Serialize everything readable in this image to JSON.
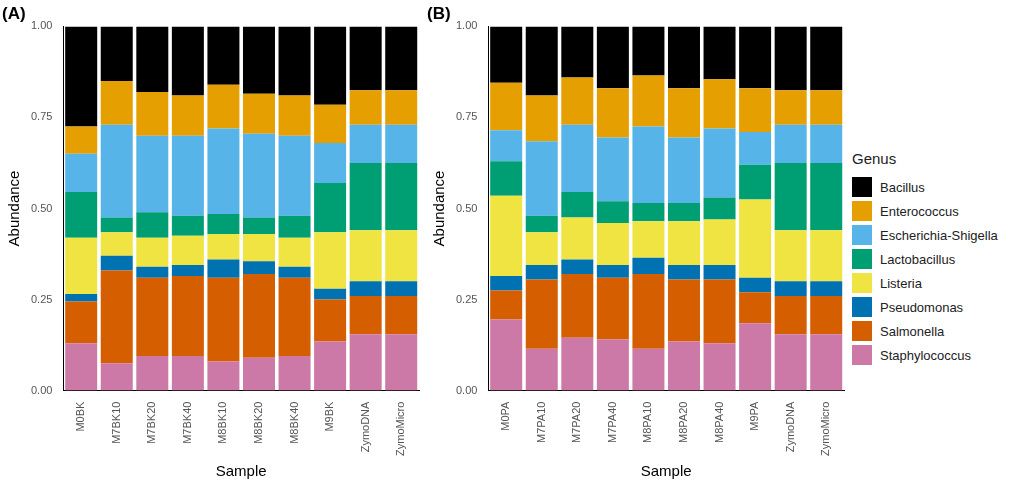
{
  "legend": "right",
  "legend_title": "Genus",
  "chart_data": [
    {
      "type": "bar",
      "title": "(A)",
      "x_label": "Sample",
      "y_label": "Abundance",
      "stacked": true,
      "grid": false,
      "categories": [
        "M0BK",
        "M7BK10",
        "M7BK20",
        "M7BK40",
        "M8BK10",
        "M8BK20",
        "M8BK40",
        "M9BK",
        "ZymoDNA",
        "ZymoMicro"
      ],
      "ylim": [
        0,
        1
      ],
      "yticks": [
        {
          "value": 0,
          "label": "0.00"
        },
        {
          "value": 0.25,
          "label": "0.25"
        },
        {
          "value": 0.5,
          "label": "0.50"
        },
        {
          "value": 0.75,
          "label": "0.75"
        },
        {
          "value": 1,
          "label": "1.00"
        }
      ],
      "series": [
        {
          "name": "Bacillus",
          "color": "#000000",
          "values": [
            0.275,
            0.15,
            0.18,
            0.19,
            0.16,
            0.185,
            0.19,
            0.215,
            0.175,
            0.175
          ]
        },
        {
          "name": "Enterococcus",
          "color": "#E69F00",
          "values": [
            0.075,
            0.12,
            0.12,
            0.11,
            0.12,
            0.11,
            0.11,
            0.105,
            0.095,
            0.095
          ]
        },
        {
          "name": "Escherichia-Shigella",
          "color": "#56B4E9",
          "values": [
            0.105,
            0.255,
            0.21,
            0.22,
            0.235,
            0.23,
            0.22,
            0.11,
            0.105,
            0.105
          ]
        },
        {
          "name": "Lactobacillus",
          "color": "#009E73",
          "values": [
            0.125,
            0.04,
            0.07,
            0.055,
            0.055,
            0.045,
            0.06,
            0.135,
            0.185,
            0.185
          ]
        },
        {
          "name": "Listeria",
          "color": "#F0E442",
          "values": [
            0.155,
            0.065,
            0.08,
            0.08,
            0.07,
            0.075,
            0.08,
            0.155,
            0.14,
            0.14
          ]
        },
        {
          "name": "Pseudomonas",
          "color": "#0072B2",
          "values": [
            0.02,
            0.04,
            0.03,
            0.03,
            0.05,
            0.035,
            0.03,
            0.03,
            0.04,
            0.04
          ]
        },
        {
          "name": "Salmonella",
          "color": "#D55E00",
          "values": [
            0.115,
            0.255,
            0.215,
            0.22,
            0.23,
            0.23,
            0.215,
            0.115,
            0.105,
            0.105
          ]
        },
        {
          "name": "Staphylococcus",
          "color": "#CC79A7",
          "values": [
            0.13,
            0.075,
            0.095,
            0.095,
            0.08,
            0.09,
            0.095,
            0.135,
            0.155,
            0.155
          ]
        }
      ]
    },
    {
      "type": "bar",
      "title": "(B)",
      "x_label": "Sample",
      "y_label": "Abundance",
      "stacked": true,
      "grid": false,
      "categories": [
        "M0PA",
        "M7PA10",
        "M7PA20",
        "M7PA40",
        "M8PA10",
        "M8PA20",
        "M8PA40",
        "M9PA",
        "ZymoDNA",
        "ZymoMicro"
      ],
      "ylim": [
        0,
        1
      ],
      "yticks": [
        {
          "value": 0,
          "label": "0.00"
        },
        {
          "value": 0.25,
          "label": "0.25"
        },
        {
          "value": 0.5,
          "label": "0.50"
        },
        {
          "value": 0.75,
          "label": "0.75"
        },
        {
          "value": 1,
          "label": "1.00"
        }
      ],
      "series": [
        {
          "name": "Bacillus",
          "color": "#000000",
          "values": [
            0.155,
            0.19,
            0.14,
            0.17,
            0.135,
            0.17,
            0.145,
            0.17,
            0.175,
            0.175
          ]
        },
        {
          "name": "Enterococcus",
          "color": "#E69F00",
          "values": [
            0.13,
            0.125,
            0.13,
            0.135,
            0.14,
            0.135,
            0.135,
            0.12,
            0.095,
            0.095
          ]
        },
        {
          "name": "Escherichia-Shigella",
          "color": "#56B4E9",
          "values": [
            0.085,
            0.205,
            0.185,
            0.175,
            0.21,
            0.18,
            0.19,
            0.09,
            0.105,
            0.105
          ]
        },
        {
          "name": "Lactobacillus",
          "color": "#009E73",
          "values": [
            0.095,
            0.045,
            0.07,
            0.06,
            0.05,
            0.05,
            0.06,
            0.095,
            0.185,
            0.185
          ]
        },
        {
          "name": "Listeria",
          "color": "#F0E442",
          "values": [
            0.22,
            0.09,
            0.115,
            0.115,
            0.1,
            0.12,
            0.125,
            0.215,
            0.14,
            0.14
          ]
        },
        {
          "name": "Pseudomonas",
          "color": "#0072B2",
          "values": [
            0.04,
            0.04,
            0.04,
            0.035,
            0.045,
            0.04,
            0.04,
            0.04,
            0.04,
            0.04
          ]
        },
        {
          "name": "Salmonella",
          "color": "#D55E00",
          "values": [
            0.08,
            0.19,
            0.175,
            0.17,
            0.205,
            0.17,
            0.175,
            0.085,
            0.105,
            0.105
          ]
        },
        {
          "name": "Staphylococcus",
          "color": "#CC79A7",
          "values": [
            0.195,
            0.115,
            0.145,
            0.14,
            0.115,
            0.135,
            0.13,
            0.185,
            0.155,
            0.155
          ]
        }
      ]
    }
  ]
}
